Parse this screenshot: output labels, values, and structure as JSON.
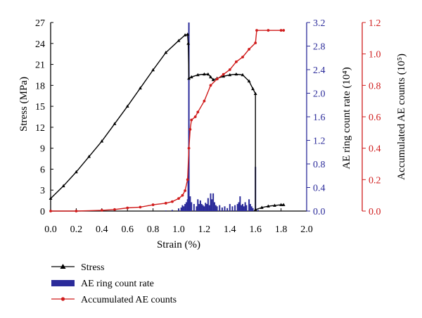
{
  "chart_data": {
    "type": "line",
    "title": "",
    "xlabel": "Strain (%)",
    "xlim": [
      0.0,
      2.0
    ],
    "xticks": [
      0.0,
      0.2,
      0.4,
      0.6,
      0.8,
      1.0,
      1.2,
      1.4,
      1.6,
      1.8,
      2.0
    ],
    "grid": false,
    "legend_position": "bottom-left",
    "axes": {
      "stress": {
        "label": "Stress (MPa)",
        "lim": [
          0,
          27
        ],
        "ticks": [
          0,
          3,
          6,
          9,
          12,
          15,
          18,
          21,
          24,
          27
        ],
        "color": "#000000",
        "side": "left"
      },
      "ae_rate": {
        "label": "AE ring count rate (10⁴)",
        "lim": [
          0.0,
          3.2
        ],
        "ticks": [
          "0.0",
          "0.4",
          "0.8",
          "1.2",
          "1.6",
          "2.0",
          "2.4",
          "2.8",
          "3.2"
        ],
        "color": "#2b2b9a",
        "side": "right"
      },
      "ae_accum": {
        "label": "Accumulated AE counts (10⁵)",
        "lim": [
          0.0,
          1.2
        ],
        "ticks": [
          "0.0",
          "0.2",
          "0.4",
          "0.6",
          "0.8",
          "1.0",
          "1.2"
        ],
        "color": "#d01c1c",
        "side": "right"
      }
    },
    "series": [
      {
        "name": "Stress",
        "axis": "stress",
        "style": "line-triangle",
        "color": "#000000",
        "points": [
          [
            0.0,
            1.8
          ],
          [
            0.1,
            3.6
          ],
          [
            0.2,
            5.6
          ],
          [
            0.3,
            7.8
          ],
          [
            0.4,
            10.0
          ],
          [
            0.5,
            12.5
          ],
          [
            0.6,
            15.0
          ],
          [
            0.7,
            17.6
          ],
          [
            0.8,
            20.2
          ],
          [
            0.9,
            22.7
          ],
          [
            1.0,
            24.4
          ],
          [
            1.05,
            25.2
          ],
          [
            1.07,
            25.3
          ],
          [
            1.075,
            24.0
          ],
          [
            1.08,
            19.0
          ],
          [
            1.1,
            19.2
          ],
          [
            1.15,
            19.5
          ],
          [
            1.2,
            19.6
          ],
          [
            1.23,
            19.6
          ],
          [
            1.25,
            19.2
          ],
          [
            1.27,
            18.8
          ],
          [
            1.3,
            19.0
          ],
          [
            1.35,
            19.3
          ],
          [
            1.4,
            19.5
          ],
          [
            1.45,
            19.6
          ],
          [
            1.5,
            19.5
          ],
          [
            1.55,
            18.6
          ],
          [
            1.58,
            17.5
          ],
          [
            1.6,
            16.8
          ],
          [
            1.6,
            0.2
          ],
          [
            1.65,
            0.5
          ],
          [
            1.7,
            0.7
          ],
          [
            1.75,
            0.8
          ],
          [
            1.8,
            0.9
          ],
          [
            1.82,
            0.9
          ]
        ]
      },
      {
        "name": "AE ring count rate",
        "axis": "ae_rate",
        "style": "bar",
        "color": "#2b2b9a",
        "points": [
          [
            0.9,
            0.01
          ],
          [
            0.95,
            0.02
          ],
          [
            1.0,
            0.04
          ],
          [
            1.02,
            0.06
          ],
          [
            1.03,
            0.1
          ],
          [
            1.04,
            0.08
          ],
          [
            1.05,
            0.12
          ],
          [
            1.06,
            0.15
          ],
          [
            1.07,
            0.2
          ],
          [
            1.075,
            0.6
          ],
          [
            1.08,
            3.2
          ],
          [
            1.09,
            0.25
          ],
          [
            1.1,
            0.15
          ],
          [
            1.12,
            0.12
          ],
          [
            1.14,
            0.08
          ],
          [
            1.15,
            0.2
          ],
          [
            1.16,
            0.12
          ],
          [
            1.17,
            0.18
          ],
          [
            1.18,
            0.12
          ],
          [
            1.19,
            0.1
          ],
          [
            1.2,
            0.08
          ],
          [
            1.21,
            0.14
          ],
          [
            1.22,
            0.12
          ],
          [
            1.23,
            0.22
          ],
          [
            1.24,
            0.1
          ],
          [
            1.25,
            0.3
          ],
          [
            1.26,
            0.2
          ],
          [
            1.27,
            0.3
          ],
          [
            1.28,
            0.15
          ],
          [
            1.29,
            0.1
          ],
          [
            1.3,
            0.08
          ],
          [
            1.32,
            0.1
          ],
          [
            1.34,
            0.06
          ],
          [
            1.36,
            0.08
          ],
          [
            1.38,
            0.05
          ],
          [
            1.4,
            0.12
          ],
          [
            1.42,
            0.08
          ],
          [
            1.44,
            0.1
          ],
          [
            1.46,
            0.12
          ],
          [
            1.47,
            0.15
          ],
          [
            1.48,
            0.25
          ],
          [
            1.49,
            0.1
          ],
          [
            1.5,
            0.12
          ],
          [
            1.51,
            0.08
          ],
          [
            1.52,
            0.15
          ],
          [
            1.53,
            0.1
          ],
          [
            1.55,
            0.2
          ],
          [
            1.56,
            0.12
          ],
          [
            1.57,
            0.08
          ],
          [
            1.58,
            0.05
          ],
          [
            1.6,
            0.75
          ],
          [
            1.62,
            0.02
          ]
        ]
      },
      {
        "name": "Accumulated AE counts",
        "axis": "ae_accum",
        "style": "line-dot",
        "color": "#d01c1c",
        "points": [
          [
            0.0,
            0.0
          ],
          [
            0.2,
            0.0
          ],
          [
            0.4,
            0.005
          ],
          [
            0.5,
            0.01
          ],
          [
            0.6,
            0.02
          ],
          [
            0.7,
            0.025
          ],
          [
            0.8,
            0.04
          ],
          [
            0.9,
            0.05
          ],
          [
            0.95,
            0.06
          ],
          [
            1.0,
            0.08
          ],
          [
            1.03,
            0.1
          ],
          [
            1.05,
            0.13
          ],
          [
            1.07,
            0.2
          ],
          [
            1.08,
            0.4
          ],
          [
            1.09,
            0.52
          ],
          [
            1.1,
            0.58
          ],
          [
            1.13,
            0.6
          ],
          [
            1.15,
            0.63
          ],
          [
            1.2,
            0.7
          ],
          [
            1.25,
            0.8
          ],
          [
            1.3,
            0.84
          ],
          [
            1.35,
            0.87
          ],
          [
            1.4,
            0.9
          ],
          [
            1.45,
            0.95
          ],
          [
            1.5,
            0.98
          ],
          [
            1.55,
            1.03
          ],
          [
            1.6,
            1.07
          ],
          [
            1.61,
            1.15
          ],
          [
            1.7,
            1.15
          ],
          [
            1.8,
            1.15
          ],
          [
            1.82,
            1.15
          ]
        ]
      }
    ]
  },
  "legend": {
    "items": [
      {
        "label": "Stress",
        "style": "line-triangle",
        "color": "#000000"
      },
      {
        "label": "AE ring count rate",
        "style": "bar",
        "color": "#2b2b9a"
      },
      {
        "label": "Accumulated AE counts",
        "style": "line-dot",
        "color": "#d01c1c"
      }
    ]
  }
}
